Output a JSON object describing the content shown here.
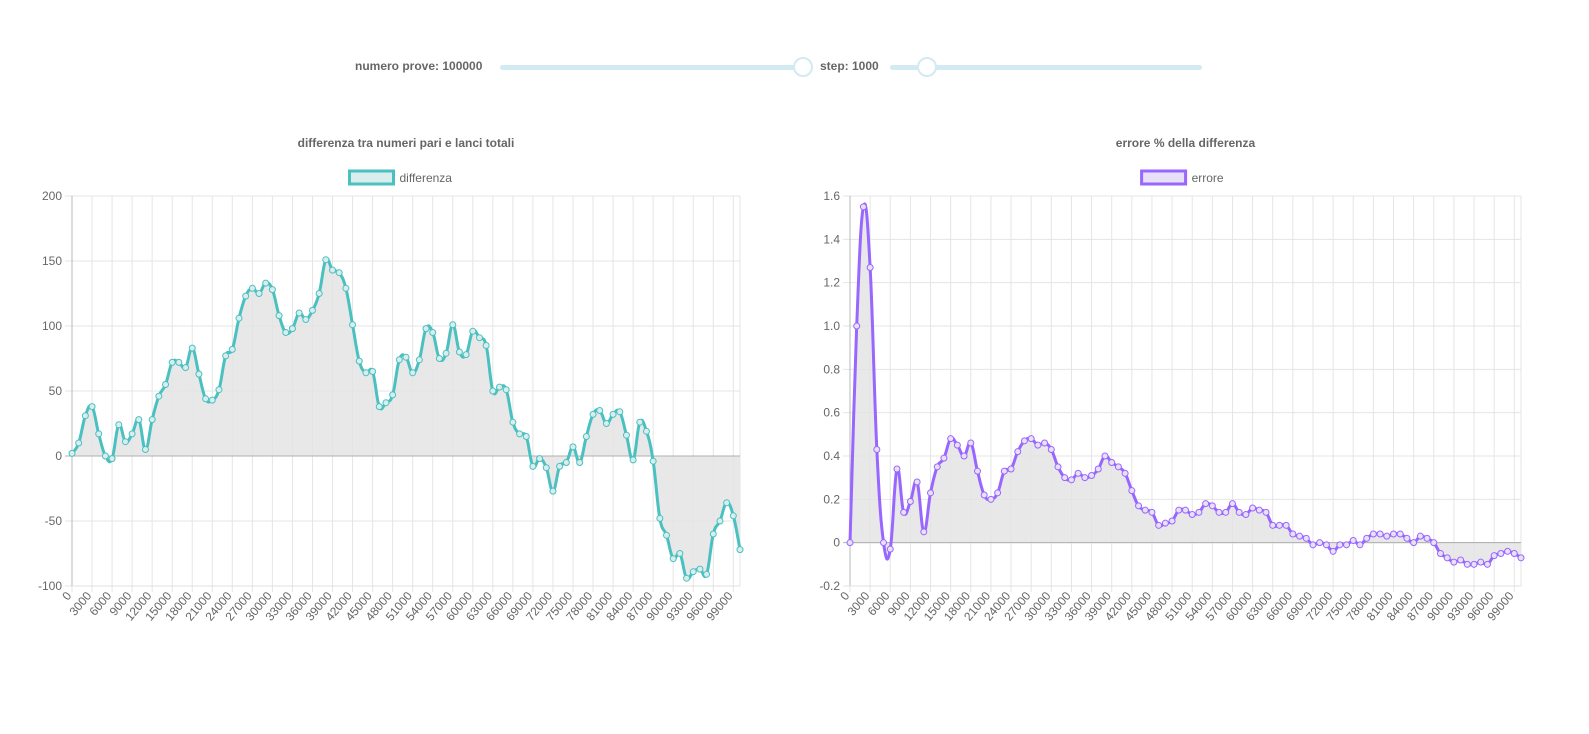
{
  "controls": {
    "trials_label": "numero prove: 100000",
    "step_label": "step: 1000",
    "trials_fraction": 1.0,
    "step_fraction": 0.12
  },
  "chart_data": [
    {
      "type": "line",
      "title": "differenza tra numeri pari e lanci totali",
      "legend": "differenza",
      "color": "#4bc0c0",
      "fill": "#e4e4e4",
      "legend_fill": "#d9eded",
      "ylim": [
        -100,
        200
      ],
      "yticks": [
        -100,
        -50,
        0,
        50,
        100,
        150,
        200
      ],
      "ytick_labels": [
        "-100",
        "-50",
        "0",
        "50",
        "100",
        "150",
        "200"
      ],
      "grid": true,
      "legend_position": "top",
      "x": [
        0,
        1000,
        2000,
        3000,
        4000,
        5000,
        6000,
        7000,
        8000,
        9000,
        10000,
        11000,
        12000,
        13000,
        14000,
        15000,
        16000,
        17000,
        18000,
        19000,
        20000,
        21000,
        22000,
        23000,
        24000,
        25000,
        26000,
        27000,
        28000,
        29000,
        30000,
        31000,
        32000,
        33000,
        34000,
        35000,
        36000,
        37000,
        38000,
        39000,
        40000,
        41000,
        42000,
        43000,
        44000,
        45000,
        46000,
        47000,
        48000,
        49000,
        50000,
        51000,
        52000,
        53000,
        54000,
        55000,
        56000,
        57000,
        58000,
        59000,
        60000,
        61000,
        62000,
        63000,
        64000,
        65000,
        66000,
        67000,
        68000,
        69000,
        70000,
        71000,
        72000,
        73000,
        74000,
        75000,
        76000,
        77000,
        78000,
        79000,
        80000,
        81000,
        82000,
        83000,
        84000,
        85000,
        86000,
        87000,
        88000,
        89000,
        90000,
        91000,
        92000,
        93000,
        94000,
        95000,
        96000,
        97000,
        98000,
        99000,
        100000
      ],
      "values": [
        2,
        10,
        31,
        38,
        17,
        0,
        -2,
        24,
        11,
        17,
        28,
        5,
        28,
        46,
        55,
        72,
        72,
        68,
        83,
        63,
        44,
        43,
        51,
        77,
        82,
        106,
        123,
        129,
        125,
        133,
        128,
        108,
        95,
        98,
        110,
        105,
        112,
        125,
        151,
        143,
        141,
        129,
        101,
        73,
        64,
        65,
        38,
        41,
        47,
        74,
        76,
        64,
        74,
        98,
        95,
        75,
        79,
        101,
        80,
        78,
        96,
        91,
        85,
        50,
        53,
        51,
        26,
        17,
        15,
        -8,
        -2,
        -9,
        -27,
        -8,
        -5,
        7,
        -5,
        15,
        32,
        35,
        25,
        32,
        34,
        16,
        -3,
        26,
        19,
        -4,
        -48,
        -61,
        -79,
        -75,
        -94,
        -89,
        -87,
        -91,
        -60,
        -50,
        -36,
        -46,
        -72
      ],
      "xtick_labels": [
        "0",
        "3000",
        "6000",
        "9000",
        "12000",
        "15000",
        "18000",
        "21000",
        "24000",
        "27000",
        "30000",
        "33000",
        "36000",
        "39000",
        "42000",
        "45000",
        "48000",
        "51000",
        "54000",
        "57000",
        "60000",
        "63000",
        "66000",
        "69000",
        "72000",
        "75000",
        "78000",
        "81000",
        "84000",
        "87000",
        "90000",
        "93000",
        "96000",
        "99000"
      ]
    },
    {
      "type": "line",
      "title": "errore % della differenza",
      "legend": "errore",
      "color": "#9966ff",
      "fill": "#e4e4e4",
      "legend_fill": "#e7e0f7",
      "ylim": [
        -0.2,
        1.6
      ],
      "yticks": [
        -0.2,
        0,
        0.2,
        0.4,
        0.6,
        0.8,
        1.0,
        1.2,
        1.4,
        1.6
      ],
      "ytick_labels": [
        "-0.2",
        "0",
        "0.2",
        "0.4",
        "0.6",
        "0.8",
        "1.0",
        "1.2",
        "1.4",
        "1.6"
      ],
      "grid": true,
      "legend_position": "top",
      "x": [
        0,
        1000,
        2000,
        3000,
        4000,
        5000,
        6000,
        7000,
        8000,
        9000,
        10000,
        11000,
        12000,
        13000,
        14000,
        15000,
        16000,
        17000,
        18000,
        19000,
        20000,
        21000,
        22000,
        23000,
        24000,
        25000,
        26000,
        27000,
        28000,
        29000,
        30000,
        31000,
        32000,
        33000,
        34000,
        35000,
        36000,
        37000,
        38000,
        39000,
        40000,
        41000,
        42000,
        43000,
        44000,
        45000,
        46000,
        47000,
        48000,
        49000,
        50000,
        51000,
        52000,
        53000,
        54000,
        55000,
        56000,
        57000,
        58000,
        59000,
        60000,
        61000,
        62000,
        63000,
        64000,
        65000,
        66000,
        67000,
        68000,
        69000,
        70000,
        71000,
        72000,
        73000,
        74000,
        75000,
        76000,
        77000,
        78000,
        79000,
        80000,
        81000,
        82000,
        83000,
        84000,
        85000,
        86000,
        87000,
        88000,
        89000,
        90000,
        91000,
        92000,
        93000,
        94000,
        95000,
        96000,
        97000,
        98000,
        99000,
        100000
      ],
      "values": [
        0,
        1.0,
        1.55,
        1.27,
        0.43,
        0,
        -0.03,
        0.34,
        0.14,
        0.19,
        0.28,
        0.05,
        0.23,
        0.35,
        0.39,
        0.48,
        0.45,
        0.4,
        0.46,
        0.33,
        0.22,
        0.2,
        0.23,
        0.33,
        0.34,
        0.42,
        0.47,
        0.48,
        0.45,
        0.46,
        0.43,
        0.35,
        0.3,
        0.29,
        0.32,
        0.3,
        0.31,
        0.34,
        0.4,
        0.37,
        0.35,
        0.32,
        0.24,
        0.17,
        0.15,
        0.14,
        0.08,
        0.09,
        0.1,
        0.15,
        0.15,
        0.13,
        0.14,
        0.18,
        0.17,
        0.14,
        0.14,
        0.18,
        0.14,
        0.13,
        0.16,
        0.15,
        0.14,
        0.08,
        0.08,
        0.08,
        0.04,
        0.03,
        0.02,
        -0.01,
        0,
        -0.01,
        -0.04,
        -0.01,
        -0.01,
        0.01,
        -0.01,
        0.02,
        0.04,
        0.04,
        0.03,
        0.04,
        0.04,
        0.02,
        0,
        0.03,
        0.02,
        0,
        -0.05,
        -0.07,
        -0.09,
        -0.08,
        -0.1,
        -0.1,
        -0.09,
        -0.1,
        -0.06,
        -0.05,
        -0.04,
        -0.05,
        -0.07
      ],
      "xtick_labels": [
        "0",
        "3000",
        "6000",
        "9000",
        "12000",
        "15000",
        "18000",
        "21000",
        "24000",
        "27000",
        "30000",
        "33000",
        "36000",
        "39000",
        "42000",
        "45000",
        "48000",
        "51000",
        "54000",
        "57000",
        "60000",
        "63000",
        "66000",
        "69000",
        "72000",
        "75000",
        "78000",
        "81000",
        "84000",
        "87000",
        "90000",
        "93000",
        "96000",
        "99000"
      ]
    }
  ]
}
